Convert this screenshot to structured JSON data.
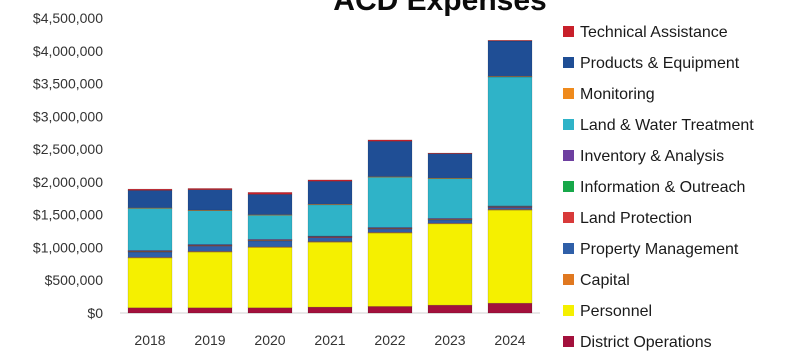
{
  "chart_data": {
    "type": "bar",
    "stacked": true,
    "title": "ACD Expenses",
    "categories": [
      "2018",
      "2019",
      "2020",
      "2021",
      "2022",
      "2023",
      "2024"
    ],
    "ylim": [
      0,
      4500000
    ],
    "yticks": [
      "$0",
      "$500,000",
      "$1,000,000",
      "$1,500,000",
      "$2,000,000",
      "$2,500,000",
      "$3,000,000",
      "$3,500,000",
      "$4,000,000",
      "$4,500,000"
    ],
    "grid": false,
    "legend_position": "right",
    "series": [
      {
        "name": "District Operations",
        "color": "#a3103c",
        "values": [
          80000,
          80000,
          80000,
          90000,
          100000,
          120000,
          150000
        ]
      },
      {
        "name": "Personnel",
        "color": "#f5f000",
        "values": [
          760000,
          850000,
          920000,
          990000,
          1120000,
          1240000,
          1420000
        ]
      },
      {
        "name": "Capital",
        "color": "#e07820",
        "values": [
          10000,
          10000,
          10000,
          10000,
          10000,
          10000,
          10000
        ]
      },
      {
        "name": "Property Management",
        "color": "#2f5fa8",
        "values": [
          80000,
          80000,
          90000,
          60000,
          50000,
          50000,
          30000
        ]
      },
      {
        "name": "Land Protection",
        "color": "#d83a3a",
        "values": [
          10000,
          10000,
          10000,
          10000,
          10000,
          10000,
          10000
        ]
      },
      {
        "name": "Information & Outreach",
        "color": "#17a84a",
        "values": [
          5000,
          5000,
          5000,
          5000,
          5000,
          5000,
          5000
        ]
      },
      {
        "name": "Inventory & Analysis",
        "color": "#6e3fa0",
        "values": [
          10000,
          10000,
          10000,
          10000,
          10000,
          10000,
          10000
        ]
      },
      {
        "name": "Land & Water Treatment",
        "color": "#2fb3c8",
        "values": [
          640000,
          515000,
          365000,
          475000,
          765000,
          605000,
          1965000
        ]
      },
      {
        "name": "Monitoring",
        "color": "#ef8a1c",
        "values": [
          10000,
          10000,
          10000,
          10000,
          10000,
          10000,
          10000
        ]
      },
      {
        "name": "Products & Equipment",
        "color": "#1f4e95",
        "values": [
          265000,
          310000,
          310000,
          350000,
          540000,
          370000,
          540000
        ]
      },
      {
        "name": "Technical Assistance",
        "color": "#c8202a",
        "values": [
          20000,
          20000,
          30000,
          20000,
          20000,
          10000,
          10000
        ]
      }
    ]
  }
}
